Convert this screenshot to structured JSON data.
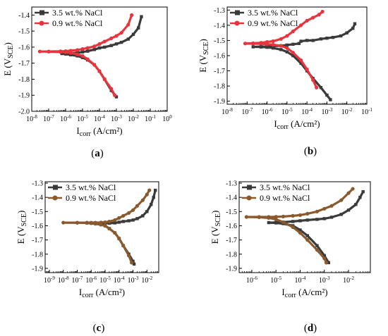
{
  "figure": {
    "panel_labels": [
      "(a)",
      "(b)",
      "(c)",
      "(d)"
    ]
  },
  "chart_data": [
    {
      "type": "line",
      "panel": "(a)",
      "xlabel": "Icorr (A/cm²)",
      "ylabel": "E (VSCE)",
      "xscale": "log",
      "xlim": [
        1e-08,
        1
      ],
      "ylim": [
        -2.0,
        -1.35
      ],
      "xticks": [
        1e-08,
        1e-07,
        1e-06,
        1e-05,
        0.0001,
        0.001,
        0.01,
        0.1,
        1
      ],
      "xtick_labels": [
        "10^-8",
        "10^-7",
        "10^-6",
        "10^-5",
        "10^-4",
        "10^-3",
        "10^-2",
        "10^-1",
        "10^0"
      ],
      "yticks": [
        -2.0,
        -1.9,
        -1.8,
        -1.7,
        -1.6,
        -1.5,
        -1.4
      ],
      "ytick_labels": [
        "-2.0",
        "-1.9",
        "-1.8",
        "-1.7",
        "-1.6",
        "-1.5",
        "-1.4"
      ],
      "grid": false,
      "legend_position": "top-left",
      "series": [
        {
          "name": "3.5 wt.% NaCl",
          "color": "#3a3a3a",
          "marker": "square",
          "x": [
            0.03,
            0.02,
            0.01,
            0.005,
            0.002,
            0.001,
            0.0005,
            0.0002,
            0.0001,
            5e-05,
            2e-05,
            1e-05,
            5e-06,
            2e-06,
            1e-06,
            6e-07,
            1e-06,
            2e-06,
            5e-06,
            1e-05,
            2e-05,
            5e-05,
            0.0001,
            0.0002,
            0.0005,
            0.001
          ],
          "y": [
            -1.41,
            -1.48,
            -1.52,
            -1.55,
            -1.57,
            -1.58,
            -1.59,
            -1.6,
            -1.605,
            -1.615,
            -1.625,
            -1.63,
            -1.635,
            -1.638,
            -1.64,
            -1.64,
            -1.643,
            -1.648,
            -1.655,
            -1.665,
            -1.68,
            -1.71,
            -1.75,
            -1.8,
            -1.87,
            -1.91
          ]
        },
        {
          "name": "0.9 wt.% NaCl",
          "color": "#e8343c",
          "marker": "circle",
          "x": [
            0.008,
            0.005,
            0.002,
            0.001,
            0.0005,
            0.0002,
            0.0001,
            5e-05,
            2e-05,
            1e-05,
            5e-06,
            2e-06,
            1e-06,
            5e-07,
            1e-07,
            3e-08,
            1e-07,
            5e-07,
            1e-06,
            2e-06,
            5e-06,
            1e-05,
            2e-05,
            5e-05,
            0.0001,
            0.0002,
            0.0005,
            0.0008
          ],
          "y": [
            -1.4,
            -1.46,
            -1.51,
            -1.53,
            -1.545,
            -1.565,
            -1.58,
            -1.595,
            -1.605,
            -1.612,
            -1.618,
            -1.622,
            -1.625,
            -1.626,
            -1.627,
            -1.627,
            -1.628,
            -1.63,
            -1.632,
            -1.636,
            -1.645,
            -1.655,
            -1.675,
            -1.71,
            -1.75,
            -1.8,
            -1.86,
            -1.9
          ]
        }
      ]
    },
    {
      "type": "line",
      "panel": "(b)",
      "xlabel": "Icorr (A/cm²)",
      "ylabel": "E (VSCE)",
      "xscale": "log",
      "xlim": [
        1e-08,
        0.1
      ],
      "ylim": [
        -1.92,
        -1.28
      ],
      "xticks": [
        1e-08,
        1e-07,
        1e-06,
        1e-05,
        0.0001,
        0.001,
        0.01,
        0.1
      ],
      "xtick_labels": [
        "10^-8",
        "10^-7",
        "10^-6",
        "10^-5",
        "10^-4",
        "10^-3",
        "10^-2",
        "10^-1"
      ],
      "yticks": [
        -1.9,
        -1.8,
        -1.7,
        -1.6,
        -1.5,
        -1.4,
        -1.3
      ],
      "ytick_labels": [
        "-1.9",
        "-1.8",
        "-1.7",
        "-1.6",
        "-1.5",
        "-1.4",
        "-1.3"
      ],
      "grid": false,
      "legend_position": "top-left",
      "series": [
        {
          "name": "3.5 wt.% NaCl",
          "color": "#3a3a3a",
          "marker": "square",
          "x": [
            0.025,
            0.02,
            0.01,
            0.005,
            0.002,
            0.001,
            0.0005,
            0.0002,
            0.0001,
            5e-05,
            4e-05,
            2e-05,
            1e-05,
            5e-06,
            2e-06,
            1e-06,
            5e-07,
            2e-07,
            5e-07,
            1e-06,
            2e-06,
            5e-06,
            1e-05,
            2e-05,
            5e-05,
            0.0001,
            0.0002,
            0.0005,
            0.001,
            0.0015
          ],
          "y": [
            -1.39,
            -1.42,
            -1.45,
            -1.47,
            -1.48,
            -1.485,
            -1.49,
            -1.5,
            -1.5,
            -1.505,
            -1.52,
            -1.525,
            -1.53,
            -1.535,
            -1.537,
            -1.54,
            -1.54,
            -1.542,
            -1.543,
            -1.545,
            -1.55,
            -1.56,
            -1.575,
            -1.6,
            -1.65,
            -1.7,
            -1.75,
            -1.81,
            -1.86,
            -1.89
          ]
        },
        {
          "name": "0.9 wt.% NaCl",
          "color": "#e8343c",
          "marker": "circle",
          "x": [
            0.0006,
            0.0004,
            0.0002,
            0.0001,
            5e-05,
            2e-05,
            1e-05,
            5e-06,
            2e-06,
            1e-06,
            5e-07,
            2e-07,
            8e-08,
            2e-07,
            5e-07,
            1e-06,
            2e-06,
            5e-06,
            1e-05,
            2e-05,
            5e-05,
            0.0001,
            0.0002,
            0.0003
          ],
          "y": [
            -1.31,
            -1.33,
            -1.35,
            -1.37,
            -1.4,
            -1.44,
            -1.47,
            -1.49,
            -1.505,
            -1.51,
            -1.515,
            -1.518,
            -1.52,
            -1.521,
            -1.522,
            -1.524,
            -1.528,
            -1.535,
            -1.55,
            -1.58,
            -1.63,
            -1.69,
            -1.76,
            -1.81
          ]
        }
      ]
    },
    {
      "type": "line",
      "panel": "(c)",
      "xlabel": "Icorr (A/cm²)",
      "ylabel": "E (VSCE)",
      "xscale": "log",
      "xlim": [
        5e-10,
        0.07
      ],
      "ylim": [
        -1.93,
        -1.29
      ],
      "xticks": [
        1e-09,
        1e-08,
        1e-07,
        1e-06,
        1e-05,
        0.0001,
        0.001,
        0.01
      ],
      "xtick_labels": [
        "10^-9",
        "10^-8",
        "10^-7",
        "10^-6",
        "10^-5",
        "10^-4",
        "10^-3",
        "10^-2"
      ],
      "yticks": [
        -1.9,
        -1.8,
        -1.7,
        -1.6,
        -1.5,
        -1.4,
        -1.3
      ],
      "ytick_labels": [
        "-1.9",
        "-1.8",
        "-1.7",
        "-1.6",
        "-1.5",
        "-1.4",
        "-1.3"
      ],
      "grid": false,
      "legend_position": "top-left",
      "series": [
        {
          "name": "3.5 wt.% NaCl",
          "color": "#3a3a3a",
          "marker": "square",
          "x": [
            0.04,
            0.03,
            0.02,
            0.01,
            0.005,
            0.002,
            0.001,
            0.0005,
            0.0002,
            0.0001,
            5e-05,
            2e-05,
            1e-05,
            5e-06,
            2e-06,
            1e-06,
            5e-07,
            1e-06,
            2e-06,
            5e-06,
            1e-05,
            2e-05,
            5e-05,
            0.0001,
            0.0002,
            0.0005,
            0.001,
            0.0012
          ],
          "y": [
            -1.35,
            -1.4,
            -1.45,
            -1.5,
            -1.53,
            -1.55,
            -1.56,
            -1.565,
            -1.57,
            -1.575,
            -1.58,
            -1.582,
            -1.58,
            -1.58,
            -1.58,
            -1.58,
            -1.58,
            -1.582,
            -1.585,
            -1.59,
            -1.6,
            -1.62,
            -1.65,
            -1.69,
            -1.74,
            -1.8,
            -1.85,
            -1.87
          ]
        },
        {
          "name": "0.9 wt.% NaCl",
          "color": "#8a5a2e",
          "marker": "circle",
          "x": [
            0.015,
            0.01,
            0.005,
            0.002,
            0.001,
            0.0005,
            0.0002,
            0.0001,
            5e-05,
            2e-05,
            1e-05,
            5e-06,
            2e-06,
            1e-06,
            5e-07,
            1e-07,
            1e-08,
            1e-07,
            5e-07,
            1e-06,
            2e-06,
            5e-06,
            1e-05,
            2e-05,
            5e-05,
            0.0001,
            0.0002,
            0.0005,
            0.0008
          ],
          "y": [
            -1.35,
            -1.38,
            -1.42,
            -1.46,
            -1.49,
            -1.51,
            -1.53,
            -1.545,
            -1.56,
            -1.57,
            -1.575,
            -1.577,
            -1.578,
            -1.578,
            -1.578,
            -1.578,
            -1.578,
            -1.579,
            -1.58,
            -1.582,
            -1.586,
            -1.593,
            -1.6,
            -1.62,
            -1.65,
            -1.69,
            -1.74,
            -1.81,
            -1.86
          ]
        }
      ]
    },
    {
      "type": "line",
      "panel": "(d)",
      "xlabel": "Icorr (A/cm²)",
      "ylabel": "E (VSCE)",
      "xscale": "log",
      "xlim": [
        3e-07,
        0.08
      ],
      "ylim": [
        -1.93,
        -1.29
      ],
      "xticks": [
        1e-06,
        1e-05,
        0.0001,
        0.001,
        0.01
      ],
      "xtick_labels": [
        "10^-6",
        "10^-5",
        "10^-4",
        "10^-3",
        "10^-2"
      ],
      "yticks": [
        -1.9,
        -1.8,
        -1.7,
        -1.6,
        -1.5,
        -1.4,
        -1.3
      ],
      "ytick_labels": [
        "-1.9",
        "-1.8",
        "-1.7",
        "-1.6",
        "-1.5",
        "-1.4",
        "-1.3"
      ],
      "grid": false,
      "legend_position": "top-left",
      "series": [
        {
          "name": "3.5 wt.% NaCl",
          "color": "#3a3a3a",
          "marker": "square",
          "x": [
            0.04,
            0.03,
            0.02,
            0.01,
            0.005,
            0.002,
            0.001,
            0.0005,
            0.0002,
            0.0001,
            5e-05,
            2e-05,
            1e-05,
            5e-06,
            1e-05,
            2e-05,
            5e-05,
            0.0001,
            0.0002,
            0.0005,
            0.001,
            0.0015
          ],
          "y": [
            -1.36,
            -1.4,
            -1.45,
            -1.49,
            -1.52,
            -1.54,
            -1.55,
            -1.555,
            -1.56,
            -1.565,
            -1.57,
            -1.575,
            -1.577,
            -1.578,
            -1.58,
            -1.585,
            -1.6,
            -1.63,
            -1.67,
            -1.74,
            -1.81,
            -1.86
          ]
        },
        {
          "name": "0.9 wt.% NaCl",
          "color": "#8a5a2e",
          "marker": "circle",
          "x": [
            0.015,
            0.01,
            0.005,
            0.002,
            0.001,
            0.0005,
            0.0002,
            0.0001,
            5e-05,
            2e-05,
            1e-05,
            5e-06,
            2e-06,
            6e-07,
            2e-06,
            5e-06,
            1e-05,
            2e-05,
            5e-05,
            0.0001,
            0.0002,
            0.0005,
            0.001,
            0.0012
          ],
          "y": [
            -1.34,
            -1.37,
            -1.42,
            -1.46,
            -1.48,
            -1.5,
            -1.515,
            -1.525,
            -1.53,
            -1.535,
            -1.537,
            -1.538,
            -1.538,
            -1.538,
            -1.54,
            -1.545,
            -1.555,
            -1.575,
            -1.61,
            -1.65,
            -1.7,
            -1.77,
            -1.83,
            -1.86
          ]
        }
      ]
    }
  ]
}
